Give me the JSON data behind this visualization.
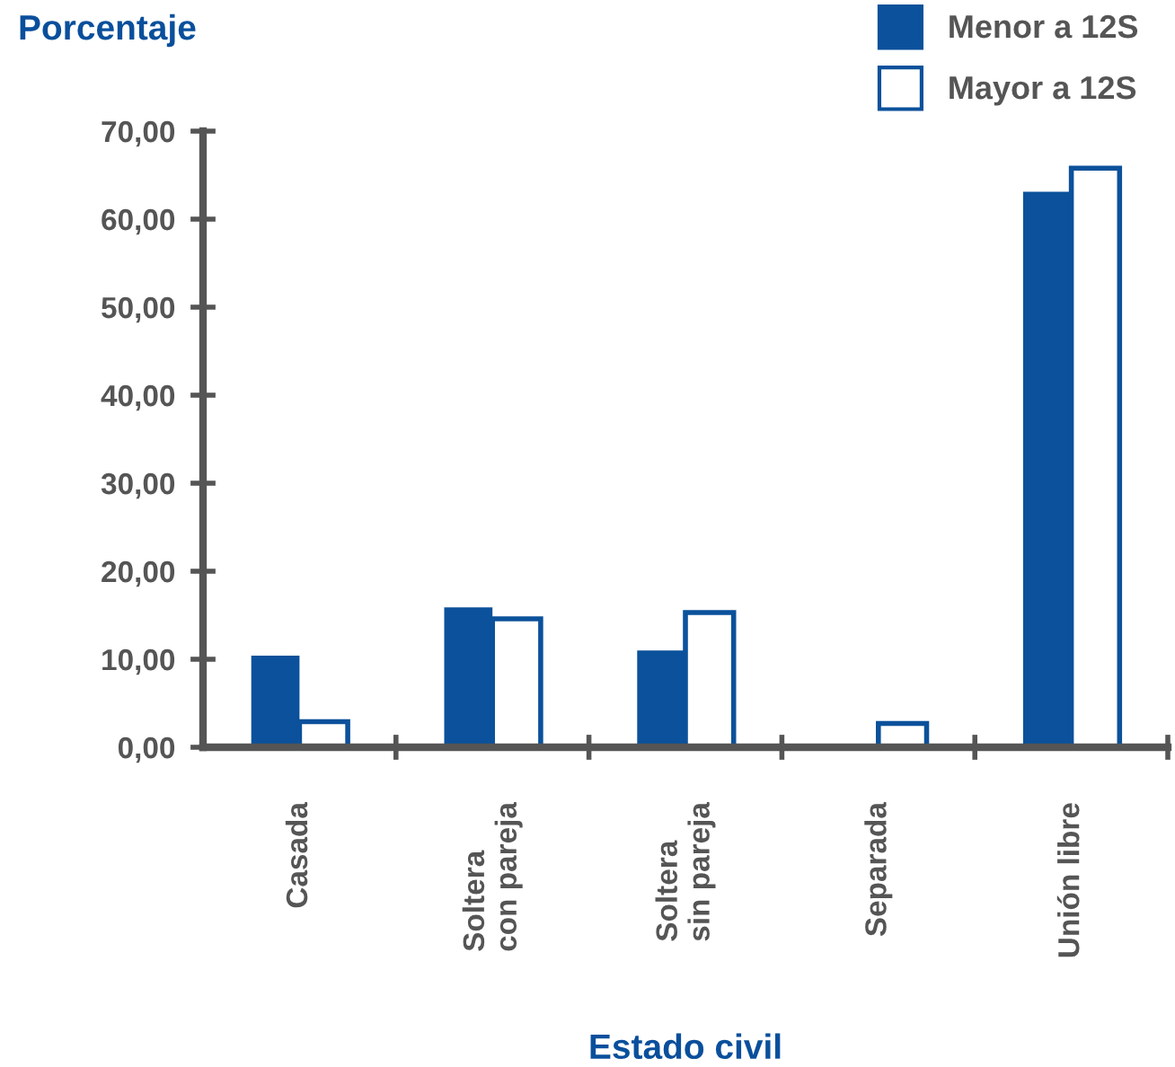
{
  "chart_data": {
    "type": "bar",
    "ylabel": "Porcentaje",
    "xlabel": "Estado civil",
    "categories": [
      "Casada",
      "Soltera\ncon pareja",
      "Soltera\nsin pareja",
      "Separada",
      "Unión libre"
    ],
    "series": [
      {
        "name": "Menor a 12S",
        "color": "#0b519b",
        "values": [
          10.4,
          15.9,
          11.0,
          0,
          63.1
        ]
      },
      {
        "name": "Mayor a 12S",
        "color": "#ffffff",
        "values": [
          2.9,
          14.6,
          15.3,
          2.7,
          65.8
        ]
      }
    ],
    "ylim": [
      0,
      70
    ],
    "yticks": [
      {
        "value": 0,
        "label": "0,00"
      },
      {
        "value": 10,
        "label": "10,00"
      },
      {
        "value": 20,
        "label": "20,00"
      },
      {
        "value": 30,
        "label": "30,00"
      },
      {
        "value": 40,
        "label": "40,00"
      },
      {
        "value": 50,
        "label": "50,00"
      },
      {
        "value": 60,
        "label": "60,00"
      },
      {
        "value": 70,
        "label": "70,00"
      }
    ],
    "grid": false,
    "legend": "top right"
  }
}
